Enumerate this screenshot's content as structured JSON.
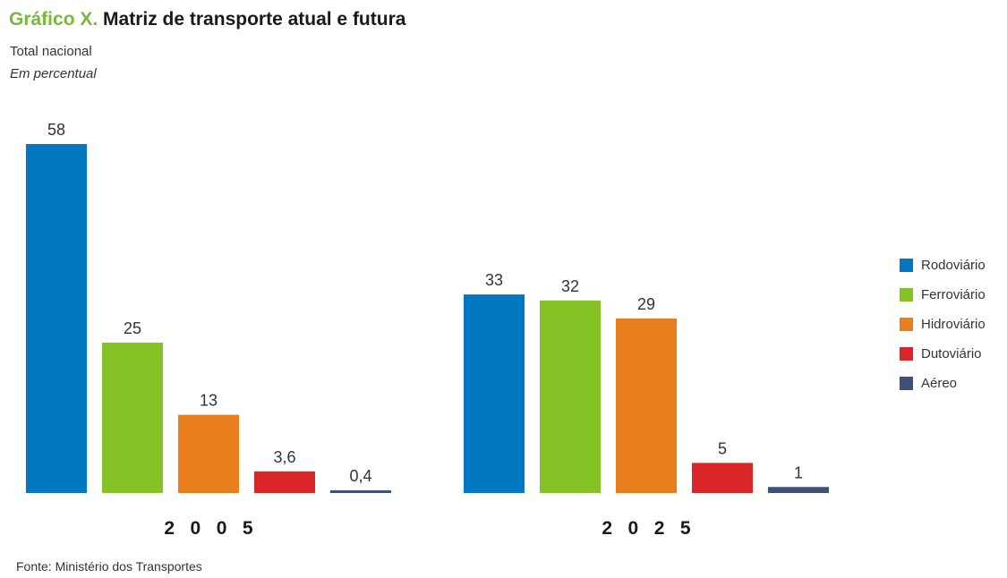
{
  "title_prefix": "Gráfico X.",
  "title": "Matriz de transporte atual e futura",
  "subtitle": "Total nacional",
  "unit_note": "Em percentual",
  "source": "Fonte: Ministério dos Transportes",
  "chart_data": {
    "type": "bar",
    "ylim": [
      0,
      58
    ],
    "grid": false,
    "legend_position": "right",
    "series_names": [
      "Rodoviário",
      "Ferroviário",
      "Hidroviário",
      "Dutoviário",
      "Aéreo"
    ],
    "series_colors": [
      "#0078c1",
      "#84c225",
      "#e97f1c",
      "#da2627",
      "#3f5178"
    ],
    "groups": [
      {
        "label": "2 0 0 5",
        "values": [
          58,
          25,
          13,
          3.6,
          0.4
        ],
        "value_labels": [
          "58",
          "25",
          "13",
          "3,6",
          "0,4"
        ]
      },
      {
        "label": "2 0 2 5",
        "values": [
          33,
          32,
          29,
          5,
          1
        ],
        "value_labels": [
          "33",
          "32",
          "29",
          "5",
          "1"
        ]
      }
    ]
  }
}
